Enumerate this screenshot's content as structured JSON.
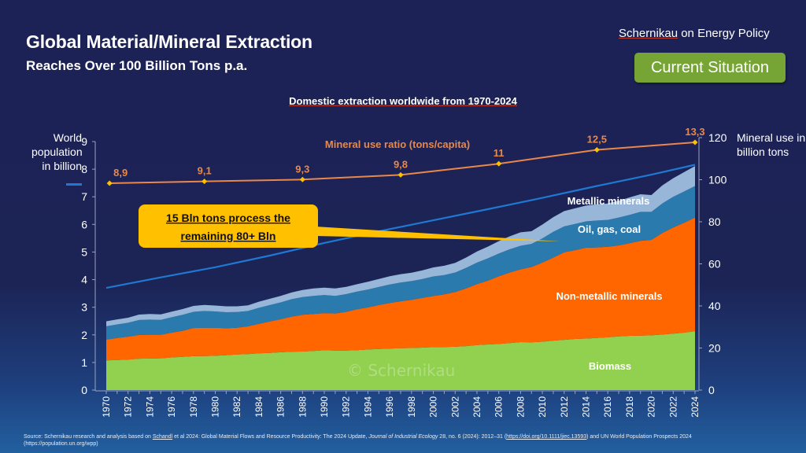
{
  "header": {
    "title": "Global Material/Mineral Extraction",
    "subtitle": "Reaches Over 100 Billion Tons p.a.",
    "brand_name": "Schernikau",
    "brand_rest": " on Energy Policy",
    "badge": "Current Situation"
  },
  "legend": {
    "population_label": "World population in billion",
    "population_color": "#1f78d1"
  },
  "callout": {
    "line1": "15 Bln tons process the",
    "line2": "remaining 80+ Bln",
    "color": "#ffc000"
  },
  "watermark": "© Schernikau",
  "source": {
    "prefix": "Source: Schernikau research and analysis based on ",
    "author": "Schandl",
    "mid": " et al 2024: Global Material Flows and Resource Productivity: The 2024 Update, ",
    "journal": "Journal of Industrial Ecology",
    "details": " 28, no. 6 (2024): 2012–31 (",
    "doi": "https://doi.org/10.1111/jiec.13593",
    "suffix": ") and UN World Population Prospects 2024",
    "line2": "(https://population.un.org/wpp)"
  },
  "chart_data": {
    "type": "area",
    "title": "Domestic extraction worldwide from 1970-2024",
    "xlabel": "",
    "ylabel_left": "World population in billion",
    "ylabel_right": "Mineral use in billion tons",
    "ylim_left": [
      0,
      9
    ],
    "ylim_right": [
      0,
      120
    ],
    "yticks_left": [
      0,
      1,
      2,
      3,
      4,
      5,
      6,
      7,
      8,
      9
    ],
    "yticks_right": [
      0,
      20,
      40,
      60,
      80,
      100,
      120
    ],
    "x": [
      1970,
      1971,
      1972,
      1973,
      1974,
      1975,
      1976,
      1977,
      1978,
      1979,
      1980,
      1981,
      1982,
      1983,
      1984,
      1985,
      1986,
      1987,
      1988,
      1989,
      1990,
      1991,
      1992,
      1993,
      1994,
      1995,
      1996,
      1997,
      1998,
      1999,
      2000,
      2001,
      2002,
      2003,
      2004,
      2005,
      2006,
      2007,
      2008,
      2009,
      2010,
      2011,
      2012,
      2013,
      2014,
      2015,
      2016,
      2017,
      2018,
      2019,
      2020,
      2021,
      2022,
      2023,
      2024
    ],
    "xtick_labels": [
      "1970",
      "1972",
      "1974",
      "1976",
      "1978",
      "1980",
      "1982",
      "1984",
      "1986",
      "1988",
      "1990",
      "1992",
      "1994",
      "1996",
      "1998",
      "2000",
      "2002",
      "2004",
      "2006",
      "2008",
      "2010",
      "2012",
      "2014",
      "2016",
      "2018",
      "2020",
      "2022",
      "2024"
    ],
    "stacked_series": [
      {
        "name": "Biomass",
        "color": "#92d050",
        "axis": "right",
        "values": [
          14.1,
          14.3,
          14.5,
          14.9,
          15.0,
          15.1,
          15.5,
          15.8,
          16.1,
          16.2,
          16.3,
          16.6,
          16.9,
          17.1,
          17.5,
          17.7,
          18.0,
          18.2,
          18.3,
          18.6,
          18.9,
          18.8,
          18.8,
          19.0,
          19.3,
          19.5,
          19.7,
          19.9,
          20.0,
          20.2,
          20.4,
          20.5,
          20.6,
          20.9,
          21.4,
          21.7,
          21.9,
          22.3,
          22.8,
          22.7,
          23.0,
          23.5,
          23.9,
          24.3,
          24.5,
          24.8,
          25.1,
          25.5,
          25.8,
          25.9,
          26.0,
          26.4,
          26.8,
          27.3,
          28.0
        ]
      },
      {
        "name": "Non-metallic minerals",
        "color": "#ff6600",
        "axis": "right",
        "values": [
          9.9,
          10.5,
          10.9,
          11.3,
          11.3,
          11.2,
          11.8,
          12.4,
          13.4,
          13.4,
          13.3,
          12.8,
          12.7,
          13.2,
          14.0,
          14.9,
          15.7,
          16.7,
          17.5,
          17.6,
          17.7,
          17.6,
          18.4,
          19.4,
          20.0,
          20.9,
          21.7,
          22.3,
          22.9,
          23.6,
          24.3,
          25.0,
          26.0,
          27.4,
          29.0,
          30.3,
          32.2,
          33.6,
          34.6,
          35.8,
          37.6,
          39.5,
          41.6,
          42.2,
          43.2,
          43.0,
          43.0,
          43.3,
          44.0,
          45.0,
          45.4,
          48.3,
          50.5,
          52.2,
          54.0
        ]
      },
      {
        "name": "Oil, gas, coal",
        "color": "#2a7aad",
        "axis": "right",
        "values": [
          6.3,
          6.4,
          6.6,
          7.1,
          7.2,
          7.1,
          7.3,
          7.6,
          7.7,
          8.0,
          7.8,
          7.6,
          7.5,
          7.3,
          7.6,
          7.8,
          8.0,
          8.3,
          8.4,
          8.6,
          8.6,
          8.4,
          8.4,
          8.4,
          8.5,
          8.6,
          8.8,
          8.9,
          8.9,
          9.0,
          9.3,
          9.2,
          9.3,
          9.8,
          10.2,
          10.6,
          10.8,
          11.0,
          11.2,
          11.0,
          11.5,
          12.2,
          12.3,
          12.5,
          12.5,
          12.8,
          12.8,
          13.2,
          13.5,
          13.8,
          13.3,
          14.0,
          14.6,
          14.9,
          15.0
        ]
      },
      {
        "name": "Metallic minerals",
        "color": "#97b6d8",
        "axis": "right",
        "values": [
          2.4,
          2.4,
          2.4,
          2.6,
          2.7,
          2.6,
          2.7,
          2.7,
          2.8,
          2.9,
          2.8,
          2.8,
          2.7,
          2.7,
          2.9,
          3.0,
          3.1,
          3.2,
          3.4,
          3.5,
          3.5,
          3.5,
          3.5,
          3.5,
          3.7,
          3.8,
          3.9,
          4.0,
          4.0,
          4.1,
          4.3,
          4.4,
          4.6,
          4.9,
          5.3,
          5.6,
          5.9,
          6.2,
          6.4,
          6.0,
          6.6,
          7.0,
          7.3,
          7.4,
          7.5,
          7.7,
          7.8,
          8.0,
          8.3,
          8.4,
          8.0,
          8.6,
          8.8,
          9.2,
          9.5
        ]
      }
    ],
    "area_labels": [
      "Metallic minerals",
      "Oil, gas, coal",
      "Non-metallic minerals",
      "Biomass"
    ],
    "line_series": [
      {
        "name": "World population in billion",
        "color": "#1f78d1",
        "axis": "left",
        "x": [
          1970,
          1975,
          1980,
          1985,
          1990,
          1995,
          2000,
          2005,
          2010,
          2015,
          2020,
          2024
        ],
        "values": [
          3.7,
          4.08,
          4.45,
          4.87,
          5.33,
          5.75,
          6.15,
          6.55,
          6.96,
          7.39,
          7.8,
          8.16
        ]
      },
      {
        "name": "Mineral use ratio (tons/capita)",
        "color": "#e8884a",
        "axis": "right_scaled",
        "x": [
          1970,
          1979,
          1988,
          1997,
          2006,
          2015,
          2024
        ],
        "values": [
          8.9,
          9.1,
          9.3,
          9.8,
          11,
          12.5,
          13.3
        ],
        "labels": [
          "8,9",
          "9,1",
          "9,3",
          "9,8",
          "11",
          "12,5",
          "13,3"
        ],
        "marker_color": "#ffc000"
      }
    ],
    "ratio_line_title": "Mineral use ratio (tons/capita)",
    "grid": false
  }
}
